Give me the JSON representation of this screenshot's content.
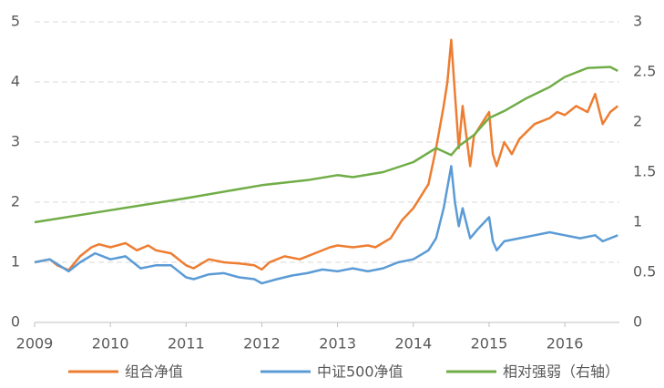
{
  "chart_data": {
    "type": "line",
    "x": {
      "组合净值": [],
      "dummy": []
    },
    "grid": true,
    "legend": "bottom"
  }
}
